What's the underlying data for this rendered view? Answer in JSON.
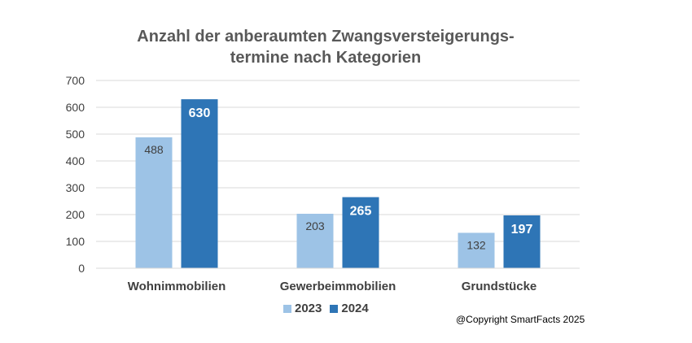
{
  "chart_data": {
    "type": "bar",
    "title_line1": "Anzahl der anberaumten Zwangsversteigerungs-",
    "title_line2": "termine nach Kategorien",
    "categories": [
      "Wohnimmobilien",
      "Gewerbeimmobilien",
      "Grundstücke"
    ],
    "series": [
      {
        "name": "2023",
        "values": [
          488,
          203,
          132
        ],
        "color": "#9dc3e6"
      },
      {
        "name": "2024",
        "values": [
          630,
          265,
          197
        ],
        "color": "#2e75b6"
      }
    ],
    "ylim": [
      0,
      700
    ],
    "yticks": [
      0,
      100,
      200,
      300,
      400,
      500,
      600,
      700
    ],
    "grid": true,
    "legend_position": "bottom"
  },
  "copyright": "@Copyright SmartFacts 2025"
}
